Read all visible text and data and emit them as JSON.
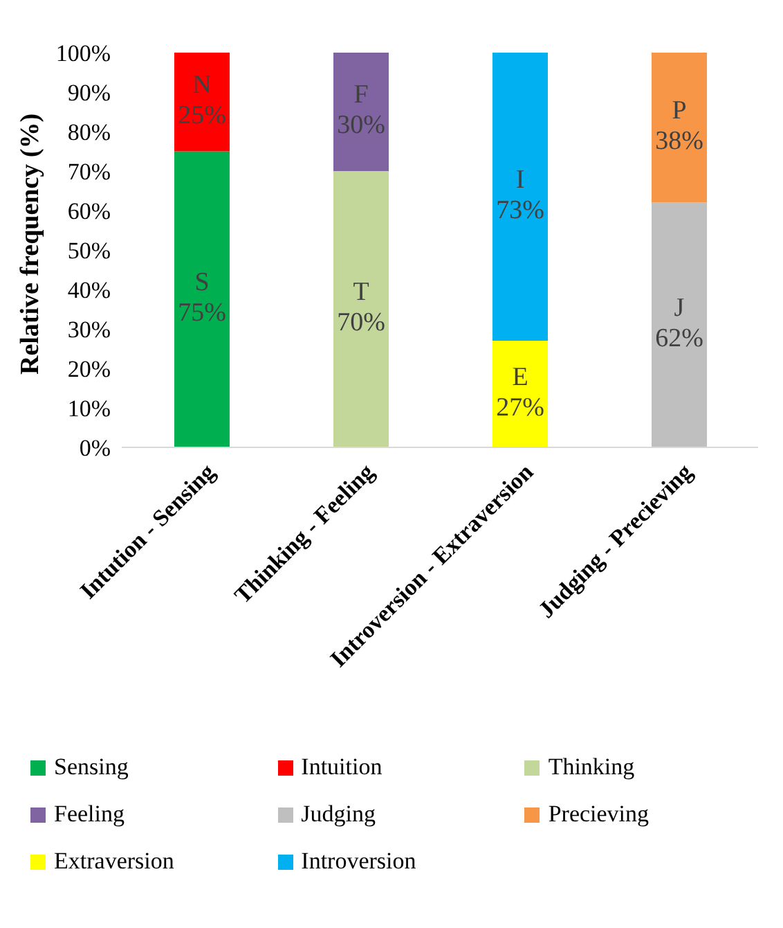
{
  "chart_data": {
    "type": "bar",
    "stacked": true,
    "ylabel": "Relative frequency  (%)",
    "categories": [
      "Intution - Sensing",
      "Thinking - Feeling",
      "Introversion - Extraversion",
      "Judging - Precieving"
    ],
    "series": [
      {
        "name": "Sensing",
        "color": "#00b050",
        "values": [
          75,
          null,
          null,
          null
        ],
        "value_labels": [
          "S\n75%",
          null,
          null,
          null
        ]
      },
      {
        "name": "Intuition",
        "color": "#ff0000",
        "values": [
          25,
          null,
          null,
          null
        ],
        "value_labels": [
          "N\n25%",
          null,
          null,
          null
        ]
      },
      {
        "name": "Thinking",
        "color": "#c4d79b",
        "values": [
          null,
          70,
          null,
          null
        ],
        "value_labels": [
          null,
          "T\n70%",
          null,
          null
        ]
      },
      {
        "name": "Feeling",
        "color": "#8064a2",
        "values": [
          null,
          30,
          null,
          null
        ],
        "value_labels": [
          null,
          "F\n30%",
          null,
          null
        ]
      },
      {
        "name": "Judging",
        "color": "#bfbfbf",
        "values": [
          null,
          null,
          null,
          62
        ],
        "value_labels": [
          null,
          null,
          null,
          "J\n62%"
        ]
      },
      {
        "name": "Precieving",
        "color": "#f79646",
        "values": [
          null,
          null,
          null,
          38
        ],
        "value_labels": [
          null,
          null,
          null,
          "P\n38%"
        ]
      },
      {
        "name": "Extraversion",
        "color": "#ffff00",
        "values": [
          null,
          null,
          27,
          null
        ],
        "value_labels": [
          null,
          null,
          "E\n27%",
          null
        ]
      },
      {
        "name": "Introversion",
        "color": "#00b0f0",
        "values": [
          null,
          null,
          73,
          null
        ],
        "value_labels": [
          null,
          null,
          "I\n73%",
          null
        ]
      }
    ],
    "ylim": [
      0,
      100
    ],
    "yticks": [
      {
        "value": 0,
        "label": "0%"
      },
      {
        "value": 10,
        "label": "10%"
      },
      {
        "value": 20,
        "label": "20%"
      },
      {
        "value": 30,
        "label": "30%"
      },
      {
        "value": 40,
        "label": "40%"
      },
      {
        "value": 50,
        "label": "50%"
      },
      {
        "value": 60,
        "label": "60%"
      },
      {
        "value": 70,
        "label": "70%"
      },
      {
        "value": 80,
        "label": "80%"
      },
      {
        "value": 90,
        "label": "90%"
      },
      {
        "value": 100,
        "label": "100%"
      }
    ],
    "grid": false,
    "legend": "bottom"
  }
}
